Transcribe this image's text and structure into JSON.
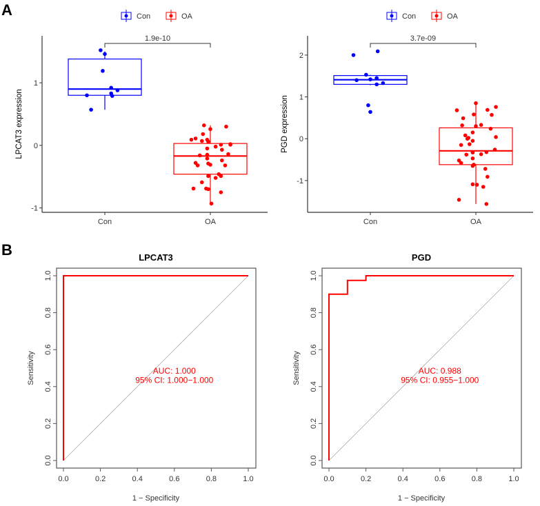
{
  "panel_labels": [
    "A",
    "B"
  ],
  "colors": {
    "Con": "#0000ff",
    "OA": "#ff0000",
    "roc": "#ff0000",
    "diag": "#aaaaaa"
  },
  "chart_data": [
    {
      "type": "box",
      "legend": [
        "Con",
        "OA"
      ],
      "legend_position": "top",
      "categories": [
        "Con",
        "OA"
      ],
      "ylabel": "LPCAT3 expression",
      "xlabel": "",
      "ylim": [
        -1.07,
        1.75
      ],
      "yticks": [
        -1,
        0,
        1
      ],
      "pvalue": "1.9e-10",
      "boxes": [
        {
          "group": "Con",
          "min": 0.57,
          "q1": 0.8,
          "median": 0.9,
          "q3": 1.38,
          "max": 1.5
        },
        {
          "group": "OA",
          "min": -0.93,
          "q1": -0.46,
          "median": -0.17,
          "q3": 0.03,
          "max": 0.32
        }
      ],
      "points": {
        "Con": [
          [
            -0.04,
            1.52
          ],
          [
            0,
            1.46
          ],
          [
            -0.02,
            1.19
          ],
          [
            0.06,
            0.92
          ],
          [
            0.12,
            0.88
          ],
          [
            0.06,
            0.83
          ],
          [
            0.07,
            0.79
          ],
          [
            -0.17,
            0.8
          ],
          [
            -0.13,
            0.57
          ]
        ],
        "OA": [
          [
            -0.06,
            0.32
          ],
          [
            0.15,
            0.3
          ],
          [
            0,
            0.26
          ],
          [
            -0.07,
            0.18
          ],
          [
            -0.14,
            0.11
          ],
          [
            -0.18,
            0.09
          ],
          [
            -0.08,
            0.07
          ],
          [
            -0.03,
            0.09
          ],
          [
            -0.02,
            0.06
          ],
          [
            0.1,
            0.01
          ],
          [
            0.19,
            0.02
          ],
          [
            0.19,
            0.01
          ],
          [
            0.05,
            -0.02
          ],
          [
            -0.03,
            -0.05
          ],
          [
            0.11,
            -0.07
          ],
          [
            -0.1,
            -0.16
          ],
          [
            -0.03,
            -0.15
          ],
          [
            0.17,
            -0.14
          ],
          [
            -0.03,
            -0.21
          ],
          [
            0.11,
            -0.24
          ],
          [
            -0.14,
            -0.28
          ],
          [
            -0.12,
            -0.32
          ],
          [
            -0.02,
            -0.29
          ],
          [
            0,
            -0.31
          ],
          [
            0.14,
            -0.32
          ],
          [
            0.08,
            -0.46
          ],
          [
            0.1,
            -0.49
          ],
          [
            -0.02,
            -0.49
          ],
          [
            0.05,
            -0.52
          ],
          [
            -0.08,
            -0.59
          ],
          [
            -0.16,
            -0.69
          ],
          [
            -0.04,
            -0.69
          ],
          [
            -0.02,
            -0.7
          ],
          [
            0.1,
            -0.75
          ],
          [
            0.01,
            -0.93
          ]
        ]
      }
    },
    {
      "type": "box",
      "legend": [
        "Con",
        "OA"
      ],
      "legend_position": "top",
      "categories": [
        "Con",
        "OA"
      ],
      "ylabel": "PGD expression",
      "xlabel": "",
      "ylim": [
        -1.76,
        2.46
      ],
      "yticks": [
        -1,
        0,
        1,
        2
      ],
      "pvalue": "3.7e-09",
      "boxes": [
        {
          "group": "Con",
          "min": 1.28,
          "q1": 1.3,
          "median": 1.41,
          "q3": 1.51,
          "max": 1.53
        },
        {
          "group": "OA",
          "min": -1.56,
          "q1": -0.62,
          "median": -0.29,
          "q3": 0.26,
          "max": 0.85
        }
      ],
      "points": {
        "Con": [
          [
            -0.16,
            2.0
          ],
          [
            0.07,
            2.09
          ],
          [
            -0.04,
            1.53
          ],
          [
            -0.13,
            1.4
          ],
          [
            0,
            1.42
          ],
          [
            0.06,
            1.45
          ],
          [
            0.06,
            1.3
          ],
          [
            0.12,
            1.33
          ],
          [
            -0.02,
            0.8
          ],
          [
            0,
            0.64
          ]
        ],
        "OA": [
          [
            0,
            0.85
          ],
          [
            -0.18,
            0.68
          ],
          [
            0.11,
            0.69
          ],
          [
            0.19,
            0.76
          ],
          [
            -0.02,
            0.58
          ],
          [
            0.15,
            0.57
          ],
          [
            -0.12,
            0.49
          ],
          [
            -0.13,
            0.32
          ],
          [
            0,
            0.3
          ],
          [
            0.05,
            0.33
          ],
          [
            0.14,
            0.24
          ],
          [
            -0.1,
            0.08
          ],
          [
            -0.03,
            0.15
          ],
          [
            -0.08,
            0.0
          ],
          [
            -0.07,
            0.02
          ],
          [
            -0.03,
            -0.05
          ],
          [
            0.19,
            0.04
          ],
          [
            -0.14,
            -0.15
          ],
          [
            -0.06,
            -0.13
          ],
          [
            -0.03,
            -0.32
          ],
          [
            -0.03,
            -0.33
          ],
          [
            -0.09,
            -0.38
          ],
          [
            0.05,
            -0.37
          ],
          [
            0.1,
            -0.32
          ],
          [
            0.18,
            -0.26
          ],
          [
            -0.03,
            -0.47
          ],
          [
            -0.16,
            -0.52
          ],
          [
            -0.14,
            -0.58
          ],
          [
            -0.02,
            -0.62
          ],
          [
            -0.03,
            -0.65
          ],
          [
            0.09,
            -0.72
          ],
          [
            0.11,
            -0.91
          ],
          [
            -0.03,
            -1.09
          ],
          [
            0.01,
            -1.1
          ],
          [
            0.07,
            -1.15
          ],
          [
            -0.16,
            -1.46
          ],
          [
            0.1,
            -1.56
          ]
        ]
      }
    },
    {
      "type": "line",
      "title": "LPCAT3",
      "xlabel": "1 − Specificity",
      "ylabel": "Sensitivity",
      "xlim": [
        0,
        1
      ],
      "ylim": [
        0,
        1
      ],
      "ticks": [
        "0.0",
        "0.2",
        "0.4",
        "0.6",
        "0.8",
        "1.0"
      ],
      "roc": [
        [
          0,
          0
        ],
        [
          0,
          1
        ],
        [
          1,
          1
        ]
      ],
      "auc_text": "AUC: 1.000",
      "ci_text": "95% CI: 1.000−1.000"
    },
    {
      "type": "line",
      "title": "PGD",
      "xlabel": "1 − Specificity",
      "ylabel": "Sensitivity",
      "xlim": [
        0,
        1
      ],
      "ylim": [
        0,
        1
      ],
      "ticks": [
        "0.0",
        "0.2",
        "0.4",
        "0.6",
        "0.8",
        "1.0"
      ],
      "roc": [
        [
          0,
          0
        ],
        [
          0,
          0.9
        ],
        [
          0.1,
          0.9
        ],
        [
          0.1,
          0.975
        ],
        [
          0.2,
          0.975
        ],
        [
          0.2,
          1
        ],
        [
          1,
          1
        ]
      ],
      "auc_text": "AUC: 0.988",
      "ci_text": "95% CI: 0.955−1.000"
    }
  ]
}
